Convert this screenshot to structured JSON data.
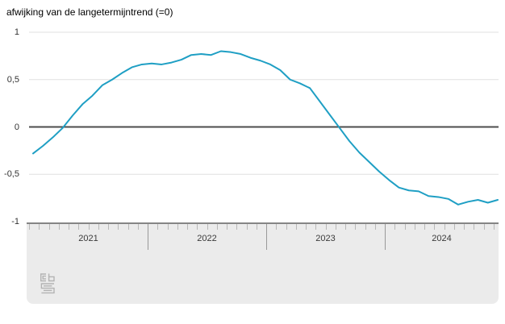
{
  "title": "afwijking van de langetermijntrend (=0)",
  "y_axis": {
    "ticks": [
      {
        "label": "1",
        "value": 1
      },
      {
        "label": "0,5",
        "value": 0.5
      },
      {
        "label": "0",
        "value": 0
      },
      {
        "label": "-0,5",
        "value": -0.5
      },
      {
        "label": "-1",
        "value": -1
      }
    ]
  },
  "x_axis": {
    "years": [
      "2021",
      "2022",
      "2023",
      "2024"
    ]
  },
  "colors": {
    "line": "#1f9fc4",
    "zero_line": "#4d4d4d",
    "grid": "#e0e0e0",
    "panel": "#ebebeb",
    "panel_border": "#858585",
    "tick": "#b8b8b8",
    "separator": "#999999",
    "text": "#333333",
    "logo": "#b3b3b3"
  },
  "chart_data": {
    "type": "line",
    "title": "afwijking van de langetermijntrend (=0)",
    "x_interval": "month",
    "x_start": "2021-01",
    "x_end": "2024-12",
    "categories_years": [
      "2021",
      "2022",
      "2023",
      "2024"
    ],
    "ylim": [
      -1,
      1
    ],
    "yticks": [
      1,
      0.5,
      0,
      -0.5,
      -1
    ],
    "grid": true,
    "zero_baseline": true,
    "legend": false,
    "series": [
      {
        "name": "afwijking van de langetermijntrend",
        "color": "#1f9fc4",
        "values": [
          -0.28,
          -0.2,
          -0.11,
          -0.01,
          0.12,
          0.24,
          0.33,
          0.44,
          0.5,
          0.57,
          0.63,
          0.66,
          0.67,
          0.66,
          0.68,
          0.71,
          0.76,
          0.77,
          0.76,
          0.8,
          0.79,
          0.77,
          0.73,
          0.7,
          0.66,
          0.6,
          0.5,
          0.46,
          0.41,
          0.27,
          0.13,
          -0.01,
          -0.15,
          -0.27,
          -0.37,
          -0.47,
          -0.56,
          -0.64,
          -0.67,
          -0.68,
          -0.73,
          -0.74,
          -0.76,
          -0.82,
          -0.79,
          -0.77,
          -0.8,
          -0.77
        ]
      }
    ]
  }
}
